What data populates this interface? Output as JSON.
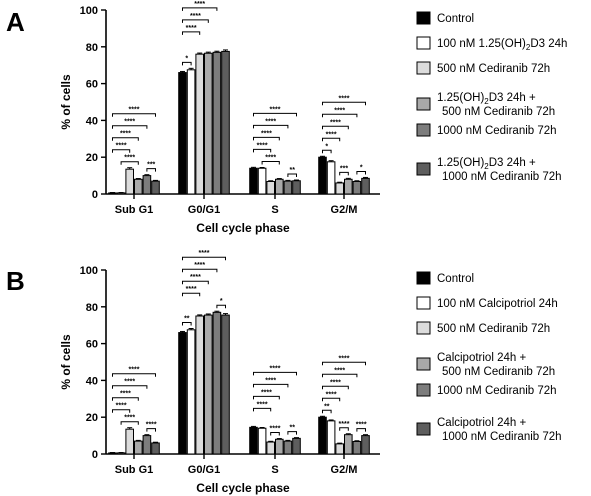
{
  "chart_data": [
    {
      "panel_label": "A",
      "type": "bar",
      "xlabel": "Cell cycle phase",
      "ylabel": "% of cells",
      "ylim": [
        0,
        100
      ],
      "yticks": [
        0,
        20,
        40,
        60,
        80,
        100
      ],
      "categories": [
        "Sub G1",
        "G0/G1",
        "S",
        "G2/M"
      ],
      "series": [
        {
          "name": "Control",
          "legend": [
            "Control"
          ],
          "color": "#000000",
          "values": [
            0.6,
            66,
            14,
            20
          ],
          "errors": [
            0.2,
            0.6,
            0.5,
            0.5
          ]
        },
        {
          "name": "100 nM 1.25(OH)2D3 24h",
          "legend": [
            "100 nM 1.25(OH)",
            "2",
            "D3 24h"
          ],
          "color": "#ffffff",
          "values": [
            0.6,
            67.5,
            14,
            17.5
          ],
          "errors": [
            0.2,
            0.8,
            0.4,
            0.6
          ]
        },
        {
          "name": "500 nM Cediranib 72h",
          "legend": [
            "500 nM Cediranib 72h"
          ],
          "color": "#dcdcdc",
          "values": [
            13.5,
            76,
            6.8,
            6
          ],
          "errors": [
            0.8,
            0.6,
            0.4,
            0.4
          ]
        },
        {
          "name": "1.25(OH)2D3 24h + 500 nM Cediranib 72h",
          "legend": [
            "1.25(OH)",
            "2",
            "D3 24h +",
            "500 nM Cediranib 72h"
          ],
          "color": "#a9a9a9",
          "values": [
            8,
            76.5,
            8,
            8
          ],
          "errors": [
            0.4,
            0.6,
            0.4,
            0.5
          ]
        },
        {
          "name": "1000 nM Cediranib 72h",
          "legend": [
            "1000 nM Cediranib 72h"
          ],
          "color": "#7d7d7d",
          "values": [
            10,
            77,
            7,
            6.8
          ],
          "errors": [
            0.5,
            0.6,
            0.4,
            0.4
          ]
        },
        {
          "name": "1.25(OH)2D3 24h + 1000 nM Cediranib 72h",
          "legend": [
            "1.25(OH)",
            "2",
            "D3 24h +",
            "1000 nM Cediranib 72h"
          ],
          "color": "#5e5e5e",
          "values": [
            7,
            77.5,
            7.2,
            8.5
          ],
          "errors": [
            0.4,
            0.8,
            0.4,
            0.5
          ]
        }
      ],
      "significance": [
        {
          "category": 0,
          "from": 0,
          "to": 2,
          "level": 1,
          "label": "****"
        },
        {
          "category": 0,
          "from": 0,
          "to": 3,
          "level": 2,
          "label": "****"
        },
        {
          "category": 0,
          "from": 0,
          "to": 4,
          "level": 3,
          "label": "****"
        },
        {
          "category": 0,
          "from": 0,
          "to": 5,
          "level": 4,
          "label": "****"
        },
        {
          "category": 0,
          "from": 1,
          "to": 3,
          "level": 0,
          "label": "****"
        },
        {
          "category": 0,
          "from": 4,
          "to": 5,
          "level": 0,
          "label": "***"
        },
        {
          "category": 1,
          "from": 0,
          "to": 1,
          "level": 0,
          "label": "*"
        },
        {
          "category": 1,
          "from": 0,
          "to": 2,
          "level": 1,
          "label": "****"
        },
        {
          "category": 1,
          "from": 0,
          "to": 3,
          "level": 2,
          "label": "****"
        },
        {
          "category": 1,
          "from": 0,
          "to": 4,
          "level": 3,
          "label": "****"
        },
        {
          "category": 1,
          "from": 0,
          "to": 5,
          "level": 4,
          "label": "****"
        },
        {
          "category": 2,
          "from": 0,
          "to": 2,
          "level": 1,
          "label": "****"
        },
        {
          "category": 2,
          "from": 0,
          "to": 3,
          "level": 2,
          "label": "****"
        },
        {
          "category": 2,
          "from": 0,
          "to": 4,
          "level": 3,
          "label": "****"
        },
        {
          "category": 2,
          "from": 0,
          "to": 5,
          "level": 4,
          "label": "****"
        },
        {
          "category": 2,
          "from": 1,
          "to": 3,
          "level": 0,
          "label": "****"
        },
        {
          "category": 2,
          "from": 4,
          "to": 5,
          "level": 0,
          "label": "**"
        },
        {
          "category": 3,
          "from": 0,
          "to": 1,
          "level": 0,
          "label": "*"
        },
        {
          "category": 3,
          "from": 0,
          "to": 2,
          "level": 1,
          "label": "****"
        },
        {
          "category": 3,
          "from": 0,
          "to": 3,
          "level": 2,
          "label": "****"
        },
        {
          "category": 3,
          "from": 0,
          "to": 4,
          "level": 3,
          "label": "****"
        },
        {
          "category": 3,
          "from": 0,
          "to": 5,
          "level": 4,
          "label": "****"
        },
        {
          "category": 3,
          "from": 2,
          "to": 3,
          "level": 0,
          "label": "***"
        },
        {
          "category": 3,
          "from": 4,
          "to": 5,
          "level": 0,
          "label": "*"
        }
      ]
    },
    {
      "panel_label": "B",
      "type": "bar",
      "xlabel": "Cell cycle phase",
      "ylabel": "% of cells",
      "ylim": [
        0,
        100
      ],
      "yticks": [
        0,
        20,
        40,
        60,
        80,
        100
      ],
      "categories": [
        "Sub G1",
        "G0/G1",
        "S",
        "G2/M"
      ],
      "series": [
        {
          "name": "Control",
          "legend": [
            "Control"
          ],
          "color": "#000000",
          "values": [
            0.6,
            66,
            14.5,
            20
          ],
          "errors": [
            0.2,
            0.6,
            0.5,
            0.5
          ]
        },
        {
          "name": "100 nM Calcipotriol 24h",
          "legend": [
            "100 nM Calcipotriol 24h"
          ],
          "color": "#ffffff",
          "values": [
            0.6,
            67.5,
            14,
            18
          ],
          "errors": [
            0.2,
            0.7,
            0.4,
            0.5
          ]
        },
        {
          "name": "500 nM Cediranib 72h",
          "legend": [
            "500 nM Cediranib 72h"
          ],
          "color": "#dcdcdc",
          "values": [
            13.5,
            75,
            6.5,
            5.5
          ],
          "errors": [
            0.8,
            0.6,
            0.4,
            0.4
          ]
        },
        {
          "name": "Calcipotriol 24h + 500 nM Cediranib 72h",
          "legend": [
            "Calcipotriol 24h +",
            "500 nM Cediranib 72h"
          ],
          "color": "#a9a9a9",
          "values": [
            7,
            75.5,
            8,
            10.5
          ],
          "errors": [
            0.4,
            0.6,
            0.4,
            0.5
          ]
        },
        {
          "name": "1000 nM Cediranib 72h",
          "legend": [
            "1000 nM Cediranib 72h"
          ],
          "color": "#7d7d7d",
          "values": [
            10,
            77,
            7,
            6.8
          ],
          "errors": [
            0.5,
            0.6,
            0.4,
            0.4
          ]
        },
        {
          "name": "Calcipotriol 24h + 1000 nM Cediranib 72h",
          "legend": [
            "Calcipotriol 24h +",
            "1000 nM Cediranib 72h"
          ],
          "color": "#5e5e5e",
          "values": [
            6,
            75.5,
            8.5,
            10
          ],
          "errors": [
            0.4,
            0.8,
            0.4,
            0.5
          ]
        }
      ],
      "significance": [
        {
          "category": 0,
          "from": 0,
          "to": 2,
          "level": 1,
          "label": "****"
        },
        {
          "category": 0,
          "from": 0,
          "to": 3,
          "level": 2,
          "label": "****"
        },
        {
          "category": 0,
          "from": 0,
          "to": 4,
          "level": 3,
          "label": "****"
        },
        {
          "category": 0,
          "from": 0,
          "to": 5,
          "level": 4,
          "label": "****"
        },
        {
          "category": 0,
          "from": 1,
          "to": 3,
          "level": 0,
          "label": "****"
        },
        {
          "category": 0,
          "from": 4,
          "to": 5,
          "level": 0,
          "label": "****"
        },
        {
          "category": 1,
          "from": 0,
          "to": 1,
          "level": 0,
          "label": "**"
        },
        {
          "category": 1,
          "from": 0,
          "to": 2,
          "level": 1,
          "label": "****"
        },
        {
          "category": 1,
          "from": 0,
          "to": 3,
          "level": 2,
          "label": "****"
        },
        {
          "category": 1,
          "from": 0,
          "to": 4,
          "level": 3,
          "label": "****"
        },
        {
          "category": 1,
          "from": 0,
          "to": 5,
          "level": 4,
          "label": "****"
        },
        {
          "category": 1,
          "from": 4,
          "to": 5,
          "level": 0,
          "label": "*"
        },
        {
          "category": 2,
          "from": 0,
          "to": 2,
          "level": 1,
          "label": "****"
        },
        {
          "category": 2,
          "from": 0,
          "to": 3,
          "level": 2,
          "label": "****"
        },
        {
          "category": 2,
          "from": 0,
          "to": 4,
          "level": 3,
          "label": "****"
        },
        {
          "category": 2,
          "from": 0,
          "to": 5,
          "level": 4,
          "label": "****"
        },
        {
          "category": 2,
          "from": 2,
          "to": 3,
          "level": 0,
          "label": "****"
        },
        {
          "category": 2,
          "from": 4,
          "to": 5,
          "level": 0,
          "label": "**"
        },
        {
          "category": 3,
          "from": 0,
          "to": 1,
          "level": 0,
          "label": "**"
        },
        {
          "category": 3,
          "from": 0,
          "to": 2,
          "level": 1,
          "label": "****"
        },
        {
          "category": 3,
          "from": 0,
          "to": 3,
          "level": 2,
          "label": "****"
        },
        {
          "category": 3,
          "from": 0,
          "to": 4,
          "level": 3,
          "label": "****"
        },
        {
          "category": 3,
          "from": 0,
          "to": 5,
          "level": 4,
          "label": "****"
        },
        {
          "category": 3,
          "from": 2,
          "to": 3,
          "level": 0,
          "label": "****"
        },
        {
          "category": 3,
          "from": 4,
          "to": 5,
          "level": 0,
          "label": "****"
        }
      ]
    }
  ]
}
